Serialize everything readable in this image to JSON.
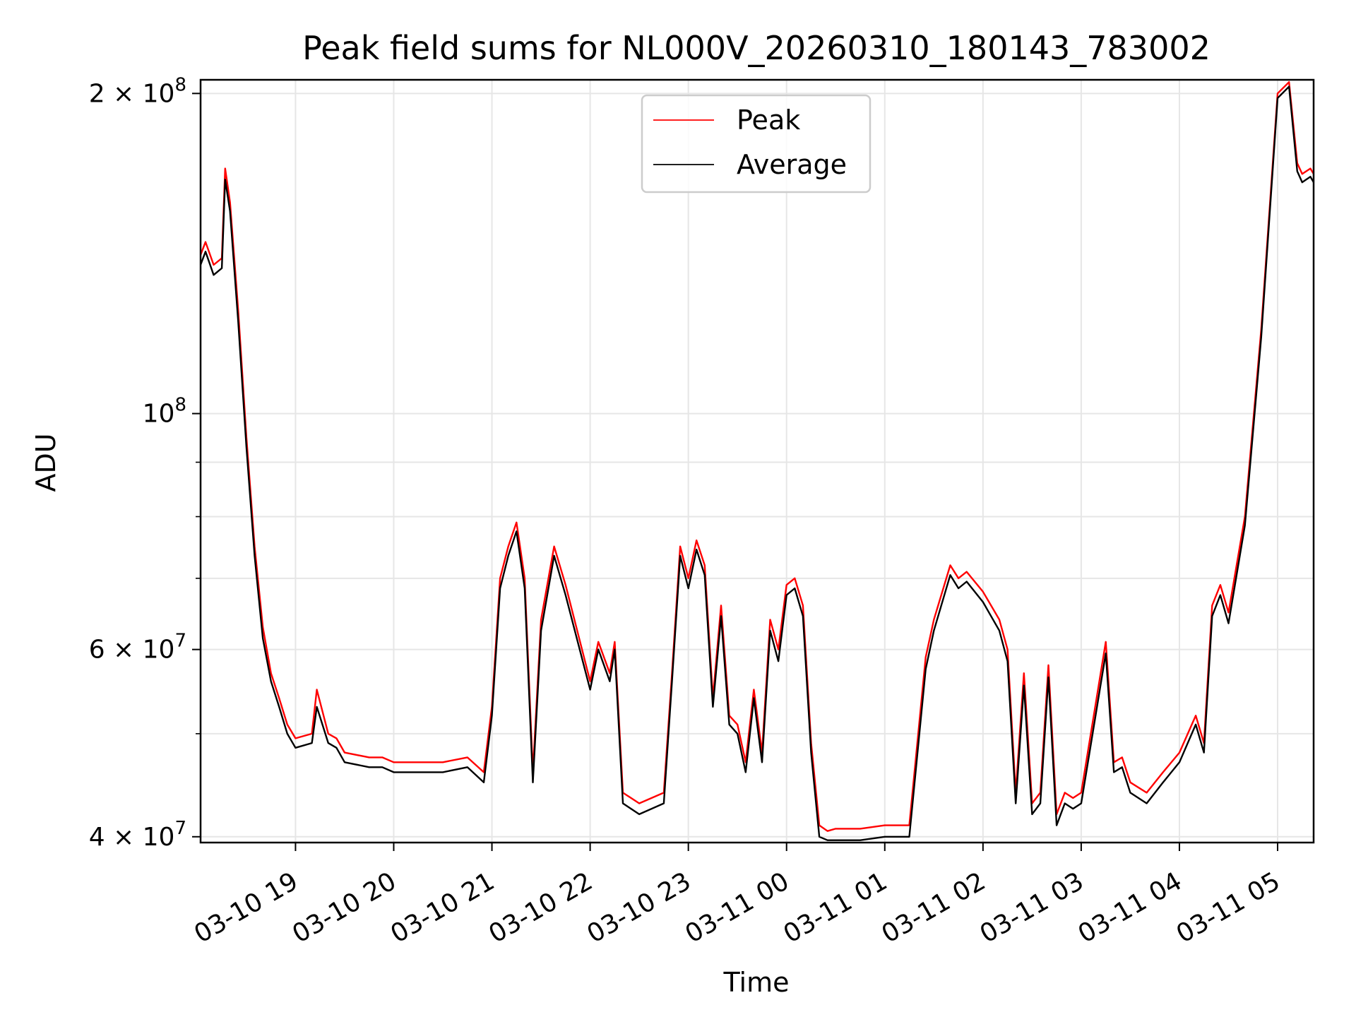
{
  "chart_data": {
    "type": "line",
    "title": "Peak field sums for NL000V_20260310_180143_783002",
    "xlabel": "Time",
    "ylabel": "ADU",
    "y_scale": "log",
    "ylim": [
      39500000,
      206000000
    ],
    "xlim": [
      "03-10 18:02",
      "03-11 05:22"
    ],
    "grid": true,
    "legend_position": "top-center",
    "x_ticks": [
      "03-10 19",
      "03-10 20",
      "03-10 21",
      "03-10 22",
      "03-10 23",
      "03-11 00",
      "03-11 01",
      "03-11 02",
      "03-11 03",
      "03-11 04",
      "03-11 05"
    ],
    "y_major_ticks": [
      {
        "value": 40000000,
        "label": "4 × 10",
        "exp": "7"
      },
      {
        "value": 60000000,
        "label": "6 × 10",
        "exp": "7"
      },
      {
        "value": 100000000,
        "label": "10",
        "exp": "8"
      },
      {
        "value": 200000000,
        "label": "2 × 10",
        "exp": "8"
      }
    ],
    "y_minor_grid": [
      50000000,
      70000000,
      80000000,
      90000000
    ],
    "x": [
      "03-10 18:02",
      "03-10 18:05",
      "03-10 18:10",
      "03-10 18:15",
      "03-10 18:17",
      "03-10 18:20",
      "03-10 18:25",
      "03-10 18:30",
      "03-10 18:35",
      "03-10 18:40",
      "03-10 18:45",
      "03-10 18:50",
      "03-10 18:55",
      "03-10 19:00",
      "03-10 19:10",
      "03-10 19:13",
      "03-10 19:20",
      "03-10 19:25",
      "03-10 19:30",
      "03-10 19:45",
      "03-10 19:53",
      "03-10 20:00",
      "03-10 20:15",
      "03-10 20:30",
      "03-10 20:45",
      "03-10 20:55",
      "03-10 21:00",
      "03-10 21:05",
      "03-10 21:10",
      "03-10 21:15",
      "03-10 21:20",
      "03-10 21:25",
      "03-10 21:30",
      "03-10 21:38",
      "03-10 21:45",
      "03-10 22:00",
      "03-10 22:05",
      "03-10 22:12",
      "03-10 22:15",
      "03-10 22:20",
      "03-10 22:30",
      "03-10 22:45",
      "03-10 22:50",
      "03-10 22:55",
      "03-10 23:00",
      "03-10 23:05",
      "03-10 23:10",
      "03-10 23:15",
      "03-10 23:20",
      "03-10 23:25",
      "03-10 23:30",
      "03-10 23:35",
      "03-10 23:40",
      "03-10 23:45",
      "03-10 23:50",
      "03-10 23:55",
      "03-11 00:00",
      "03-11 00:05",
      "03-11 00:10",
      "03-11 00:15",
      "03-11 00:20",
      "03-11 00:25",
      "03-11 00:30",
      "03-11 00:45",
      "03-11 01:00",
      "03-11 01:15",
      "03-11 01:25",
      "03-11 01:30",
      "03-11 01:40",
      "03-11 01:45",
      "03-11 01:50",
      "03-11 02:00",
      "03-11 02:10",
      "03-11 02:15",
      "03-11 02:20",
      "03-11 02:25",
      "03-11 02:30",
      "03-11 02:35",
      "03-11 02:40",
      "03-11 02:45",
      "03-11 02:50",
      "03-11 02:55",
      "03-11 03:00",
      "03-11 03:15",
      "03-11 03:20",
      "03-11 03:25",
      "03-11 03:30",
      "03-11 03:40",
      "03-11 03:50",
      "03-11 04:00",
      "03-11 04:10",
      "03-11 04:15",
      "03-11 04:20",
      "03-11 04:25",
      "03-11 04:30",
      "03-11 04:40",
      "03-11 04:50",
      "03-11 05:00",
      "03-11 05:07",
      "03-11 05:12",
      "03-11 05:15",
      "03-11 05:20",
      "03-11 05:22"
    ],
    "series": [
      {
        "name": "Peak",
        "color": "#ff0000",
        "values": [
          141000000,
          145000000,
          138000000,
          140000000,
          170000000,
          158000000,
          125000000,
          95000000,
          75000000,
          63000000,
          57000000,
          54000000,
          51000000,
          49500000,
          50000000,
          55000000,
          50000000,
          49500000,
          48000000,
          47500000,
          47500000,
          47000000,
          47000000,
          47000000,
          47500000,
          46000000,
          53000000,
          70000000,
          75000000,
          79000000,
          70000000,
          46000000,
          64000000,
          75000000,
          69000000,
          56000000,
          61000000,
          57000000,
          61000000,
          44000000,
          43000000,
          44000000,
          57000000,
          75000000,
          70000000,
          76000000,
          72000000,
          54000000,
          66000000,
          52000000,
          51000000,
          47000000,
          55000000,
          48000000,
          64000000,
          60000000,
          69000000,
          70000000,
          66000000,
          49000000,
          41000000,
          40500000,
          40700000,
          40700000,
          41000000,
          41000000,
          59000000,
          64000000,
          72000000,
          70000000,
          71000000,
          68000000,
          64000000,
          60000000,
          44000000,
          57000000,
          43000000,
          44000000,
          58000000,
          42000000,
          44000000,
          43500000,
          44000000,
          61000000,
          47000000,
          47500000,
          45000000,
          44000000,
          46000000,
          48000000,
          52000000,
          49000000,
          66000000,
          69000000,
          65000000,
          80000000,
          120000000,
          200000000,
          205000000,
          172000000,
          168000000,
          170000000,
          168000000
        ]
      },
      {
        "name": "Average",
        "color": "#000000",
        "values": [
          138000000,
          142000000,
          135000000,
          137000000,
          166000000,
          155000000,
          122000000,
          93000000,
          73500000,
          61500000,
          56000000,
          53000000,
          50000000,
          48500000,
          49000000,
          53000000,
          49000000,
          48500000,
          47000000,
          46500000,
          46500000,
          46000000,
          46000000,
          46000000,
          46500000,
          45000000,
          52000000,
          68500000,
          73500000,
          77500000,
          68500000,
          45000000,
          62500000,
          73500000,
          67500000,
          55000000,
          60000000,
          56000000,
          60000000,
          43000000,
          42000000,
          43000000,
          56000000,
          73500000,
          68500000,
          74500000,
          70500000,
          53000000,
          64500000,
          51000000,
          50000000,
          46000000,
          54000000,
          47000000,
          62500000,
          58500000,
          67500000,
          68500000,
          64500000,
          48000000,
          40000000,
          39700000,
          39700000,
          39700000,
          40000000,
          40000000,
          57500000,
          62500000,
          70500000,
          68500000,
          69500000,
          66500000,
          62500000,
          58500000,
          43000000,
          55500000,
          42000000,
          43000000,
          56500000,
          41000000,
          43000000,
          42500000,
          43000000,
          59500000,
          46000000,
          46500000,
          44000000,
          43000000,
          45000000,
          47000000,
          51000000,
          48000000,
          64500000,
          67500000,
          63500000,
          78500000,
          118000000,
          198000000,
          203000000,
          169000000,
          165000000,
          167000000,
          165000000
        ]
      }
    ]
  }
}
